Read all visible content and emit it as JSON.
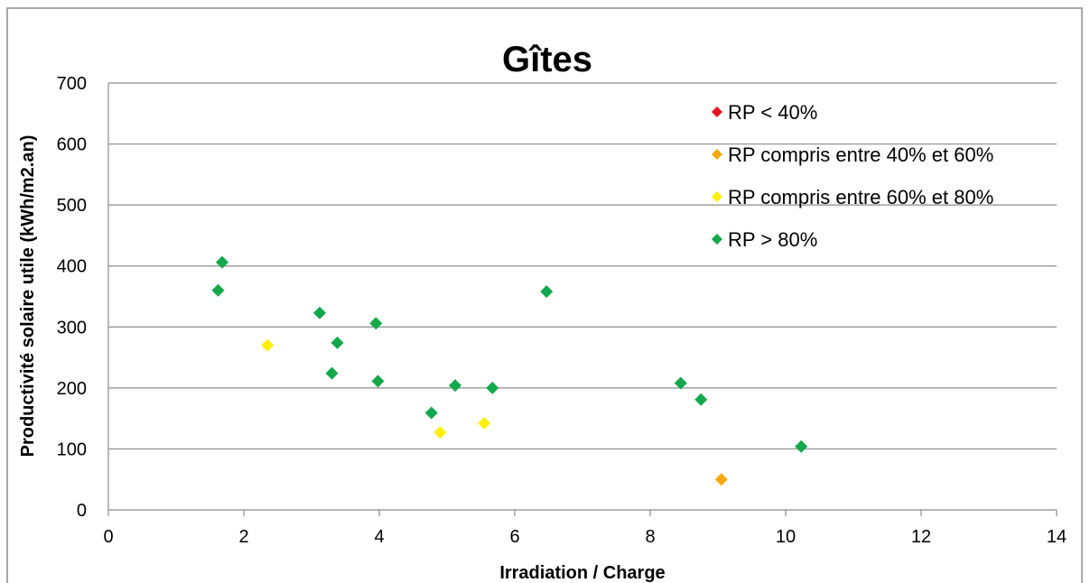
{
  "chart_data": {
    "type": "scatter",
    "title": "Gîtes",
    "xlabel": "Irradiation / Charge",
    "ylabel": "Productivité solaire utile (kWh/m2.an)",
    "xlim": [
      0,
      14
    ],
    "ylim": [
      0,
      700
    ],
    "x_ticks": [
      0,
      2,
      4,
      6,
      8,
      10,
      12,
      14
    ],
    "y_ticks": [
      0,
      100,
      200,
      300,
      400,
      500,
      600,
      700
    ],
    "grid": "horizontal",
    "legend_position": "top-right",
    "series": [
      {
        "name": "RP < 40%",
        "color": "#e8141c",
        "points": []
      },
      {
        "name": "RP compris entre 40% et 60%",
        "color": "#f5a80f",
        "points": [
          [
            9.05,
            50
          ]
        ]
      },
      {
        "name": "RP compris entre 60% et 80%",
        "color": "#ffef0a",
        "points": [
          [
            2.35,
            270
          ],
          [
            4.9,
            127
          ],
          [
            5.55,
            142
          ]
        ]
      },
      {
        "name": "RP > 80%",
        "color": "#12a84b",
        "points": [
          [
            1.62,
            360
          ],
          [
            1.68,
            406
          ],
          [
            3.12,
            323
          ],
          [
            3.3,
            224
          ],
          [
            3.38,
            274
          ],
          [
            3.95,
            306
          ],
          [
            3.98,
            211
          ],
          [
            4.77,
            159
          ],
          [
            5.12,
            204
          ],
          [
            5.67,
            200
          ],
          [
            6.47,
            358
          ],
          [
            8.45,
            208
          ],
          [
            8.75,
            181
          ],
          [
            10.23,
            104
          ]
        ]
      }
    ]
  }
}
